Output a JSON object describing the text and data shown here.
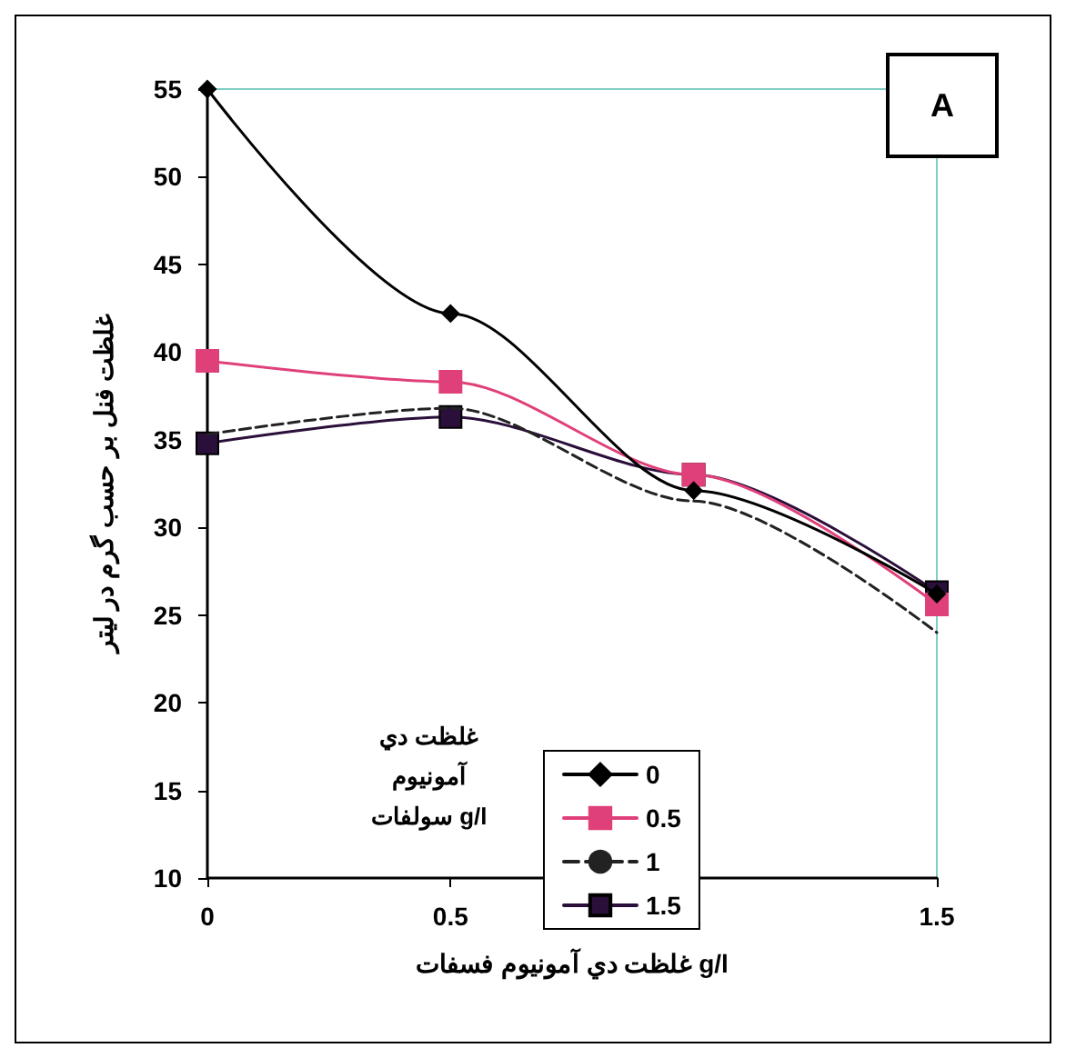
{
  "chart_data": {
    "type": "line",
    "xlabel": "غلظت دي آمونيوم فسفات g/l",
    "ylabel": "غلظت فنل بر حسب گرم در ليتر",
    "legend_title": "غلظت دي\nآمونيوم\nسولفات g/l",
    "annotations": [
      "A"
    ],
    "x": [
      0,
      0.5,
      1,
      1.5
    ],
    "xlim": [
      0,
      1.5
    ],
    "xticks": [
      0,
      0.5,
      1,
      1.5
    ],
    "ylim": [
      10,
      55
    ],
    "yticks": [
      10,
      15,
      20,
      25,
      30,
      35,
      40,
      45,
      50,
      55
    ],
    "grid": false,
    "legend": "bottom",
    "series": [
      {
        "name": "0",
        "color": "#000000",
        "marker": "diamond",
        "line_style": "solid",
        "values": [
          55,
          42.2,
          32.1,
          26.2
        ]
      },
      {
        "name": "0.5",
        "color": "#e0407a",
        "marker": "square",
        "line_style": "solid",
        "values": [
          39.5,
          38.3,
          33,
          25.6
        ]
      },
      {
        "name": "1",
        "color": "#222222",
        "marker": "none",
        "line_style": "dashed",
        "values": [
          35.3,
          36.8,
          31.5,
          24
        ]
      },
      {
        "name": "1.5",
        "color": "#2a0f3a",
        "marker": "square",
        "line_style": "solid",
        "values": [
          34.8,
          36.3,
          33,
          26.3
        ]
      }
    ]
  }
}
